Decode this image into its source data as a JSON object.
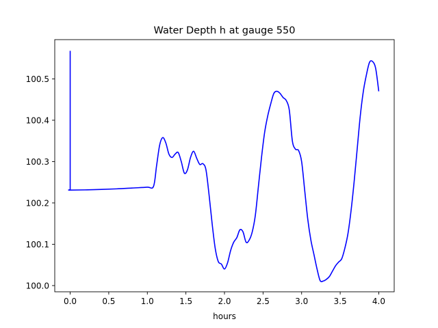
{
  "chart_data": {
    "type": "line",
    "title": "Water Depth h at gauge 550",
    "xlabel": "hours",
    "ylabel": "",
    "xlim": [
      -0.2,
      4.2
    ],
    "ylim": [
      99.985,
      100.595
    ],
    "x_ticks": [
      0.0,
      0.5,
      1.0,
      1.5,
      2.0,
      2.5,
      3.0,
      3.5,
      4.0
    ],
    "x_tick_labels": [
      "0.0",
      "0.5",
      "1.0",
      "1.5",
      "2.0",
      "2.5",
      "3.0",
      "3.5",
      "4.0"
    ],
    "y_ticks": [
      100.0,
      100.1,
      100.2,
      100.3,
      100.4,
      100.5
    ],
    "y_tick_labels": [
      "100.0",
      "100.1",
      "100.2",
      "100.3",
      "100.4",
      "100.5"
    ],
    "grid": false,
    "series": [
      {
        "color": "#0000ff",
        "x": [
          0.0,
          0.0,
          0.002,
          0.3,
          0.6,
          0.8,
          1.0,
          1.08,
          1.12,
          1.16,
          1.2,
          1.24,
          1.28,
          1.32,
          1.36,
          1.4,
          1.44,
          1.48,
          1.52,
          1.56,
          1.6,
          1.64,
          1.68,
          1.72,
          1.76,
          1.8,
          1.84,
          1.88,
          1.92,
          1.96,
          2.0,
          2.04,
          2.08,
          2.12,
          2.16,
          2.2,
          2.24,
          2.28,
          2.32,
          2.36,
          2.4,
          2.44,
          2.48,
          2.52,
          2.56,
          2.6,
          2.64,
          2.68,
          2.72,
          2.76,
          2.8,
          2.84,
          2.88,
          2.92,
          2.96,
          3.0,
          3.04,
          3.08,
          3.12,
          3.16,
          3.2,
          3.24,
          3.28,
          3.32,
          3.36,
          3.4,
          3.44,
          3.48,
          3.52,
          3.56,
          3.6,
          3.64,
          3.68,
          3.72,
          3.76,
          3.8,
          3.84,
          3.88,
          3.92,
          3.96,
          4.0
        ],
        "y": [
          100.568,
          100.232,
          100.231,
          100.232,
          100.234,
          100.236,
          100.238,
          100.24,
          100.29,
          100.34,
          100.358,
          100.345,
          100.318,
          100.31,
          100.318,
          100.322,
          100.3,
          100.272,
          100.28,
          100.31,
          100.325,
          100.308,
          100.293,
          100.295,
          100.28,
          100.22,
          100.15,
          100.09,
          100.058,
          100.052,
          100.04,
          100.055,
          100.085,
          100.105,
          100.116,
          100.135,
          100.13,
          100.105,
          100.11,
          100.13,
          100.17,
          100.24,
          100.31,
          100.37,
          100.41,
          100.44,
          100.465,
          100.47,
          100.465,
          100.455,
          100.448,
          100.425,
          100.35,
          100.33,
          100.327,
          100.3,
          100.23,
          100.16,
          100.11,
          100.075,
          100.04,
          100.012,
          100.011,
          100.015,
          100.022,
          100.035,
          100.048,
          100.057,
          100.065,
          100.09,
          100.125,
          100.18,
          100.25,
          100.33,
          100.41,
          100.47,
          100.51,
          100.54,
          100.542,
          100.525,
          100.47
        ]
      }
    ]
  }
}
